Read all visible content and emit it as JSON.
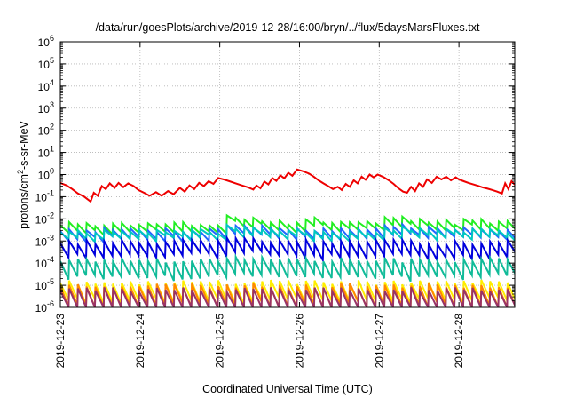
{
  "chart_data": {
    "type": "line",
    "title": "/data/run/goesPlots/archive/2019-12-28/16:00/bryn/../flux/5daysMarsFluxes.txt",
    "xlabel": "Coordinated Universal Time (UTC)",
    "ylabel_parts": [
      "protons/cm",
      "2",
      "-s-sr-MeV"
    ],
    "yscale": "log",
    "ylim": [
      1e-06,
      1000000.0
    ],
    "xlim": [
      0,
      5.7
    ],
    "x_start": "2019-12-23",
    "x_units": "days since 2019-12-23 00:00 UTC",
    "grid": true,
    "legend": "none",
    "x_ticks": [
      {
        "x": 0,
        "label": "2019-12-23"
      },
      {
        "x": 1,
        "label": "2019-12-24"
      },
      {
        "x": 2,
        "label": "2019-12-25"
      },
      {
        "x": 3,
        "label": "2019-12-26"
      },
      {
        "x": 4,
        "label": "2019-12-27"
      },
      {
        "x": 5,
        "label": "2019-12-28"
      }
    ],
    "y_ticks": [
      {
        "exp": "6"
      },
      {
        "exp": "5"
      },
      {
        "exp": "4"
      },
      {
        "exp": "3"
      },
      {
        "exp": "2"
      },
      {
        "exp": "1"
      },
      {
        "exp": "0"
      },
      {
        "exp": "-1"
      },
      {
        "exp": "-2"
      },
      {
        "exp": "-3"
      },
      {
        "exp": "-4"
      },
      {
        "exp": "-5"
      },
      {
        "exp": "-6"
      }
    ],
    "series": [
      {
        "color": "#ee0000",
        "points": [
          [
            0.0,
            0.42
          ],
          [
            0.08,
            0.32
          ],
          [
            0.15,
            0.22
          ],
          [
            0.22,
            0.14
          ],
          [
            0.3,
            0.1
          ],
          [
            0.38,
            0.06
          ],
          [
            0.42,
            0.15
          ],
          [
            0.47,
            0.11
          ],
          [
            0.52,
            0.3
          ],
          [
            0.57,
            0.22
          ],
          [
            0.62,
            0.4
          ],
          [
            0.68,
            0.25
          ],
          [
            0.73,
            0.42
          ],
          [
            0.79,
            0.27
          ],
          [
            0.85,
            0.4
          ],
          [
            0.92,
            0.3
          ],
          [
            0.98,
            0.2
          ],
          [
            1.05,
            0.15
          ],
          [
            1.12,
            0.11
          ],
          [
            1.2,
            0.16
          ],
          [
            1.27,
            0.11
          ],
          [
            1.35,
            0.18
          ],
          [
            1.42,
            0.13
          ],
          [
            1.5,
            0.25
          ],
          [
            1.56,
            0.17
          ],
          [
            1.62,
            0.32
          ],
          [
            1.68,
            0.22
          ],
          [
            1.74,
            0.42
          ],
          [
            1.8,
            0.3
          ],
          [
            1.86,
            0.5
          ],
          [
            1.92,
            0.38
          ],
          [
            1.98,
            0.7
          ],
          [
            2.05,
            0.6
          ],
          [
            2.12,
            0.5
          ],
          [
            2.2,
            0.4
          ],
          [
            2.28,
            0.32
          ],
          [
            2.36,
            0.26
          ],
          [
            2.42,
            0.21
          ],
          [
            2.46,
            0.32
          ],
          [
            2.51,
            0.24
          ],
          [
            2.56,
            0.48
          ],
          [
            2.61,
            0.36
          ],
          [
            2.66,
            0.7
          ],
          [
            2.71,
            0.52
          ],
          [
            2.76,
            0.92
          ],
          [
            2.81,
            0.68
          ],
          [
            2.86,
            1.2
          ],
          [
            2.91,
            0.88
          ],
          [
            2.97,
            1.7
          ],
          [
            3.05,
            1.4
          ],
          [
            3.12,
            1.1
          ],
          [
            3.18,
            0.8
          ],
          [
            3.24,
            0.55
          ],
          [
            3.3,
            0.4
          ],
          [
            3.36,
            0.3
          ],
          [
            3.42,
            0.22
          ],
          [
            3.48,
            0.28
          ],
          [
            3.53,
            0.2
          ],
          [
            3.58,
            0.38
          ],
          [
            3.63,
            0.28
          ],
          [
            3.68,
            0.55
          ],
          [
            3.73,
            0.4
          ],
          [
            3.78,
            0.8
          ],
          [
            3.83,
            0.58
          ],
          [
            3.88,
            1.0
          ],
          [
            3.93,
            0.75
          ],
          [
            3.98,
            1.0
          ],
          [
            4.05,
            0.78
          ],
          [
            4.12,
            0.55
          ],
          [
            4.18,
            0.38
          ],
          [
            4.24,
            0.24
          ],
          [
            4.3,
            0.17
          ],
          [
            4.35,
            0.15
          ],
          [
            4.4,
            0.28
          ],
          [
            4.45,
            0.18
          ],
          [
            4.5,
            0.4
          ],
          [
            4.55,
            0.28
          ],
          [
            4.6,
            0.6
          ],
          [
            4.66,
            0.42
          ],
          [
            4.72,
            0.8
          ],
          [
            4.78,
            0.6
          ],
          [
            4.84,
            0.8
          ],
          [
            4.9,
            0.55
          ],
          [
            4.96,
            0.75
          ],
          [
            5.0,
            0.6
          ],
          [
            5.06,
            0.5
          ],
          [
            5.12,
            0.42
          ],
          [
            5.18,
            0.36
          ],
          [
            5.24,
            0.31
          ],
          [
            5.3,
            0.26
          ],
          [
            5.36,
            0.23
          ],
          [
            5.42,
            0.2
          ],
          [
            5.48,
            0.17
          ],
          [
            5.54,
            0.14
          ],
          [
            5.58,
            0.4
          ],
          [
            5.62,
            0.22
          ],
          [
            5.66,
            0.5
          ],
          [
            5.7,
            0.35
          ]
        ]
      },
      {
        "color": "#22ee22",
        "base": 0.006,
        "period": 0.11,
        "amp": 2.2,
        "events": [
          [
            2.02,
            2.4
          ],
          [
            3.02,
            1.6
          ],
          [
            4.03,
            2.2
          ],
          [
            5.05,
            1.4
          ]
        ],
        "seed": 3
      },
      {
        "color": "#2266ff",
        "base": 0.0032,
        "period": 0.11,
        "amp": 2.4,
        "events": [
          [
            2.02,
            2.0
          ],
          [
            4.03,
            1.8
          ]
        ],
        "seed": 7
      },
      {
        "color": "#00c8c0",
        "base": 0.0028,
        "period": 0.11,
        "amp": 2.2,
        "events": [
          [
            2.02,
            1.7
          ],
          [
            4.03,
            1.5
          ]
        ],
        "seed": 11
      },
      {
        "color": "#0000dd",
        "base": 0.0009,
        "period": 0.11,
        "amp": 4.5,
        "events": [
          [
            2.02,
            1.5
          ]
        ],
        "seed": 13
      },
      {
        "color": "#11bb99",
        "base": 0.00014,
        "period": 0.11,
        "amp": 6.0,
        "events": [
          [
            2.02,
            1.4
          ]
        ],
        "seed": 17
      },
      {
        "color": "#ffee00",
        "base": 1.4e-05,
        "period": 0.11,
        "amp": 7.0,
        "events": [],
        "seed": 19
      },
      {
        "color": "#ff8800",
        "base": 1e-05,
        "period": 0.11,
        "amp": 8.0,
        "events": [],
        "seed": 23
      },
      {
        "color": "#993366",
        "base": 6.5e-06,
        "period": 0.11,
        "amp": 10.0,
        "events": [],
        "seed": 29
      }
    ]
  }
}
